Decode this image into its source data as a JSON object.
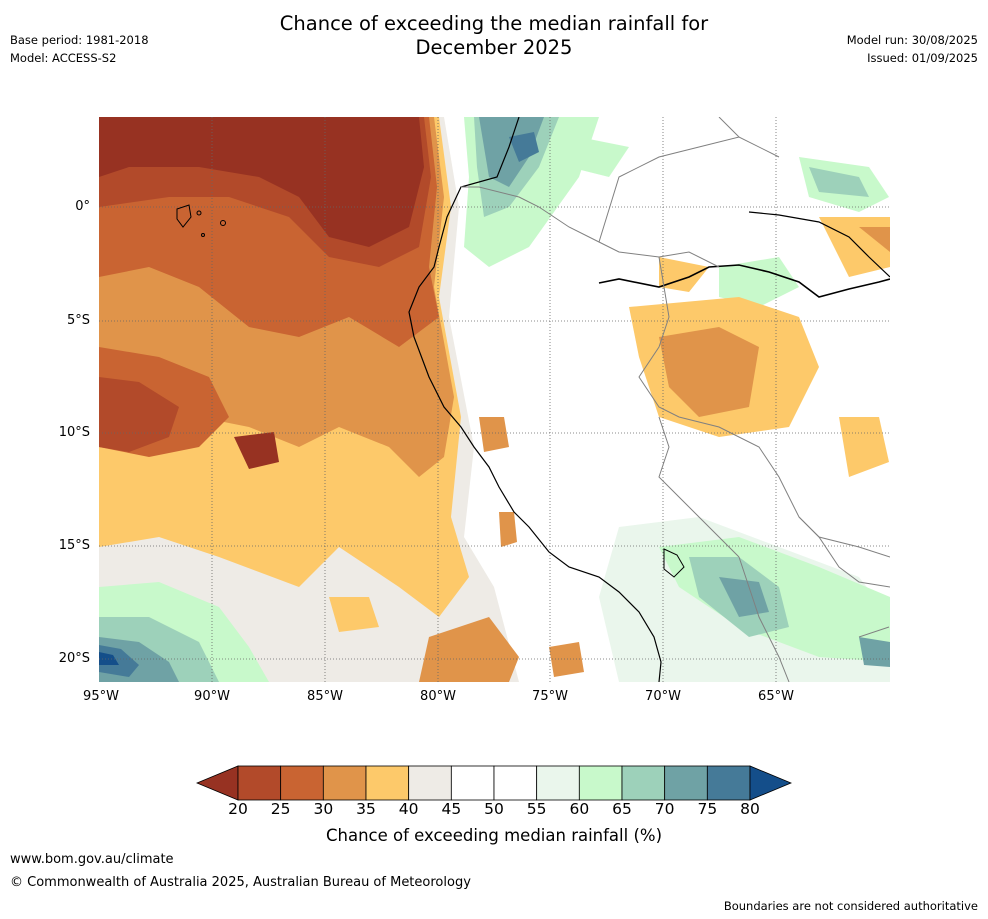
{
  "header": {
    "base_period": "Base period: 1981-2018",
    "model": "Model: ACCESS-S2",
    "title_line1": "Chance of exceeding the median rainfall for",
    "title_line2": "December 2025",
    "model_run": "Model run: 30/08/2025",
    "issued": "Issued: 01/09/2025"
  },
  "map": {
    "lat_labels": [
      "0°",
      "5°S",
      "10°S",
      "15°S",
      "20°S"
    ],
    "lon_labels": [
      "95°W",
      "90°W",
      "85°W",
      "80°W",
      "75°W",
      "70°W",
      "65°W"
    ]
  },
  "colorbar": {
    "ticks": [
      "20",
      "25",
      "30",
      "35",
      "40",
      "45",
      "50",
      "55",
      "60",
      "65",
      "70",
      "75",
      "80"
    ],
    "label": "Chance of exceeding median rainfall (%)",
    "colors": [
      "#973222",
      "#b24a2a",
      "#c96432",
      "#e0944a",
      "#fdc96a",
      "#eeebe6",
      "#ffffff",
      "#ffffff",
      "#eaf6ec",
      "#c8f9cb",
      "#9dd1ba",
      "#6fa2a5",
      "#457a98",
      "#144e8a"
    ]
  },
  "footer": {
    "url": "www.bom.gov.au/climate",
    "copyright": "© Commonwealth of Australia 2025, Australian Bureau of Meteorology",
    "note": "Boundaries are not considered authoritative"
  }
}
